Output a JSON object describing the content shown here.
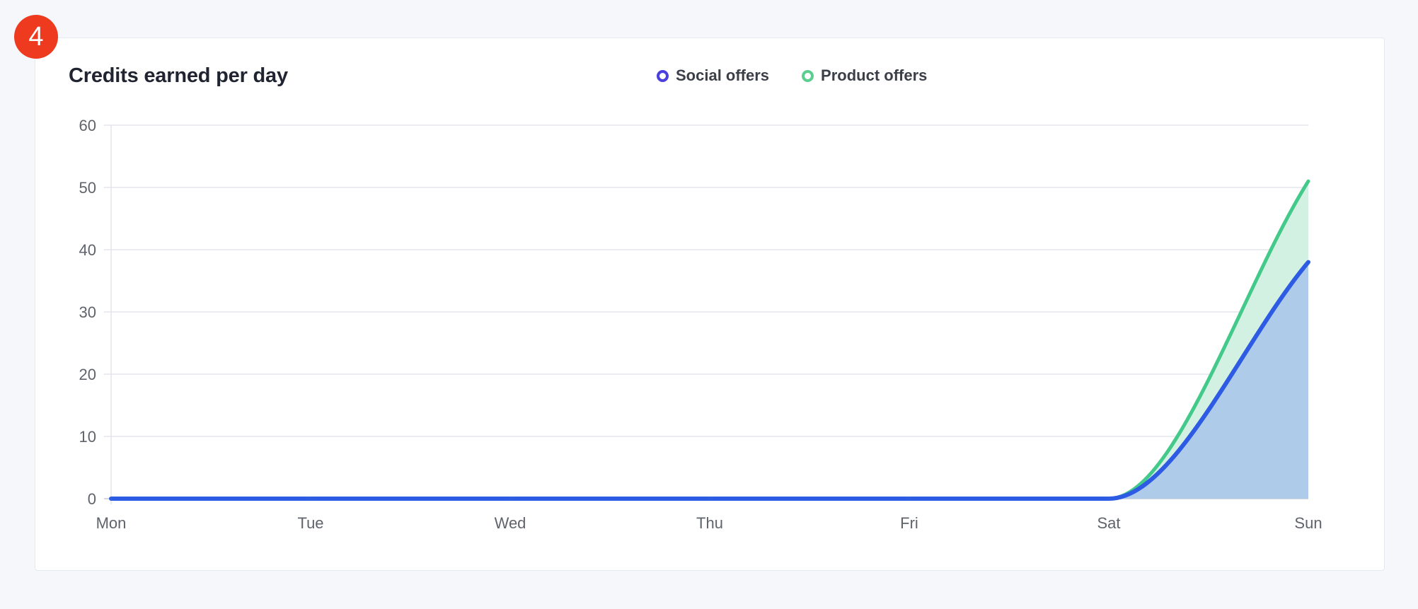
{
  "badge": {
    "number": "4"
  },
  "chart_data": {
    "type": "area",
    "title": "Credits earned per day",
    "xlabel": "",
    "ylabel": "",
    "categories": [
      "Mon",
      "Tue",
      "Wed",
      "Thu",
      "Fri",
      "Sat",
      "Sun"
    ],
    "ylim": [
      0,
      60
    ],
    "yticks": [
      "0",
      "10",
      "20",
      "30",
      "40",
      "50",
      "60"
    ],
    "stacked": true,
    "grid": true,
    "legend_position": "top-center",
    "series": [
      {
        "name": "Social offers",
        "values": [
          0,
          0,
          0,
          0,
          0,
          0,
          38
        ],
        "color": "#2d5be3",
        "fill": "#aecbea",
        "legend_color": "#4b3fe0"
      },
      {
        "name": "Product offers",
        "values": [
          0,
          0,
          0,
          0,
          0,
          0,
          13
        ],
        "color": "#43c98a",
        "fill": "#d3f1e2",
        "legend_color": "#5ccf8f"
      }
    ]
  }
}
